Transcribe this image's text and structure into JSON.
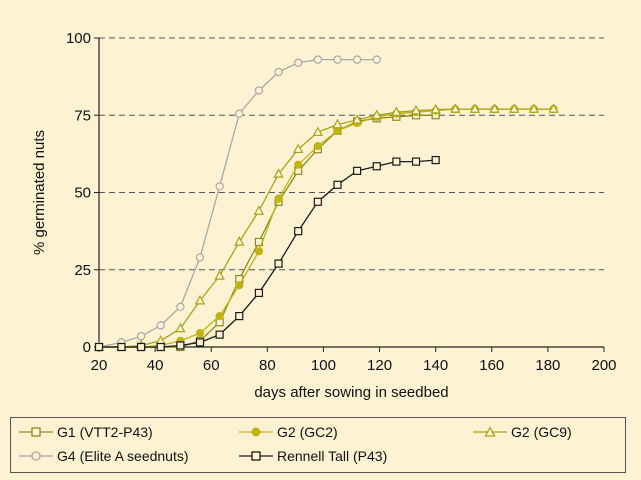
{
  "chart_data": {
    "type": "line",
    "title": "",
    "xlabel": "days after sowing in seedbed",
    "ylabel": "% germinated nuts",
    "xlim": [
      20,
      200
    ],
    "ylim": [
      0,
      100
    ],
    "x_ticks": [
      20,
      40,
      60,
      80,
      100,
      120,
      140,
      160,
      180,
      200
    ],
    "y_ticks": [
      0,
      25,
      50,
      75,
      100
    ],
    "x_tick_labels": [
      "20",
      "40",
      "60",
      "80",
      "100",
      "120",
      "140",
      "160",
      "180",
      "200"
    ],
    "y_tick_labels": [
      "0",
      "25",
      "50",
      "75",
      "100"
    ],
    "grid": "horizontal dashed",
    "legend_position": "bottom",
    "series": [
      {
        "name": "G1 (VTT2-P43)",
        "color": "#8a8a1f",
        "marker": "square-open",
        "x": [
          20,
          28,
          35,
          42,
          49,
          56,
          63,
          70,
          77,
          84,
          91,
          98,
          105,
          112,
          119,
          126,
          133,
          140
        ],
        "y": [
          0,
          0,
          0,
          0,
          0,
          2,
          8,
          22,
          34,
          47,
          57,
          64,
          70,
          73,
          74,
          74.5,
          75,
          75
        ]
      },
      {
        "name": "G2 (GC2)",
        "color": "#c2b311",
        "marker": "circle-filled",
        "x": [
          20,
          28,
          35,
          42,
          49,
          56,
          63,
          70,
          77,
          84,
          91,
          98,
          105,
          112,
          119,
          126,
          133,
          140,
          147,
          154,
          161,
          168,
          175,
          182
        ],
        "y": [
          0,
          0,
          0,
          0.5,
          2,
          4.5,
          10,
          20,
          31,
          48,
          59,
          65,
          70,
          72.5,
          74.5,
          75.5,
          76,
          76.5,
          77,
          77,
          77,
          77,
          77,
          77
        ]
      },
      {
        "name": "G2 (GC9)",
        "color": "#a8a21a",
        "marker": "triangle-open",
        "x": [
          20,
          28,
          35,
          42,
          49,
          56,
          63,
          70,
          77,
          84,
          91,
          98,
          105,
          112,
          119,
          126,
          133,
          140,
          147,
          154,
          161,
          168,
          175,
          182
        ],
        "y": [
          0,
          0,
          0.5,
          2,
          6,
          15,
          23,
          34,
          44,
          56,
          64,
          69.5,
          72,
          73.5,
          75,
          76,
          76.5,
          76.8,
          77,
          77,
          77,
          77,
          77,
          77
        ]
      },
      {
        "name": "G4 (Elite A seednuts)",
        "color": "#a8a8a8",
        "marker": "circle-open",
        "x": [
          20,
          28,
          35,
          42,
          49,
          56,
          63,
          70,
          77,
          84,
          91,
          98,
          105,
          112,
          119
        ],
        "y": [
          0,
          1.5,
          3.5,
          7,
          13,
          29,
          52,
          75.5,
          83,
          89,
          92,
          93,
          93,
          93,
          93
        ]
      },
      {
        "name": "Rennell Tall (P43)",
        "color": "#1a1a1a",
        "marker": "square-open",
        "x": [
          20,
          28,
          35,
          42,
          49,
          56,
          63,
          70,
          77,
          84,
          91,
          98,
          105,
          112,
          119,
          126,
          133,
          140
        ],
        "y": [
          0,
          0,
          0,
          0,
          0.5,
          1.5,
          4,
          10,
          17.5,
          27,
          37.5,
          47,
          52.5,
          57,
          58.5,
          60,
          60,
          60.5
        ]
      }
    ]
  }
}
